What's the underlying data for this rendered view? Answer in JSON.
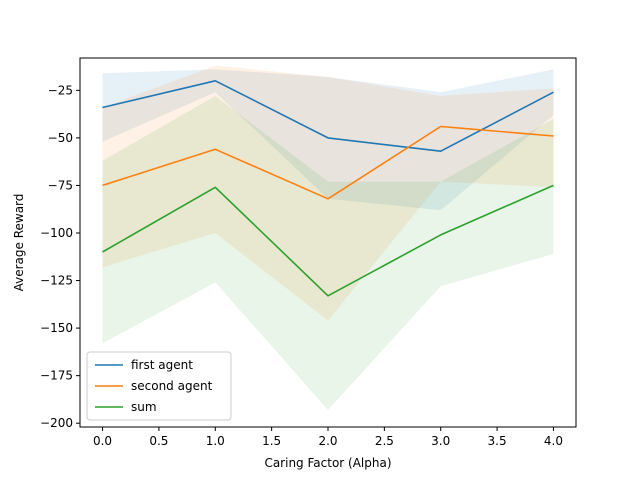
{
  "chart_data": {
    "type": "line",
    "title": "",
    "xlabel": "Caring Factor (Alpha)",
    "ylabel": "Average Reward",
    "x": [
      0.0,
      1.0,
      2.0,
      3.0,
      4.0
    ],
    "xlim": [
      -0.2,
      4.2
    ],
    "ylim": [
      -202,
      -8
    ],
    "xticks": [
      0.0,
      0.5,
      1.0,
      1.5,
      2.0,
      2.5,
      3.0,
      3.5,
      4.0
    ],
    "xtick_labels": [
      "0.0",
      "0.5",
      "1.0",
      "1.5",
      "2.0",
      "2.5",
      "3.0",
      "3.5",
      "4.0"
    ],
    "yticks": [
      -200,
      -175,
      -150,
      -125,
      -100,
      -75,
      -50,
      -25
    ],
    "ytick_labels": [
      "−200",
      "−175",
      "−150",
      "−125",
      "−100",
      "−75",
      "−50",
      "−25"
    ],
    "grid": false,
    "legend_position": "lower-left",
    "series": [
      {
        "name": "first agent",
        "color": "#1f77b4",
        "values": [
          -34,
          -20,
          -50,
          -57,
          -26
        ],
        "band_upper": [
          -16,
          -14,
          -18,
          -26,
          -14
        ],
        "band_lower": [
          -52,
          -26,
          -82,
          -88,
          -38
        ]
      },
      {
        "name": "second agent",
        "color": "#ff7f0e",
        "values": [
          -75,
          -56,
          -82,
          -44,
          -49
        ],
        "band_upper": [
          -34,
          -12,
          -18,
          -28,
          -24
        ],
        "band_lower": [
          -118,
          -100,
          -146,
          -73,
          -76
        ]
      },
      {
        "name": "sum",
        "color": "#2ca02c",
        "values": [
          -110,
          -76,
          -133,
          -101,
          -75
        ],
        "band_upper": [
          -62,
          -28,
          -73,
          -73,
          -40
        ],
        "band_lower": [
          -158,
          -126,
          -193,
          -128,
          -111
        ]
      }
    ]
  }
}
